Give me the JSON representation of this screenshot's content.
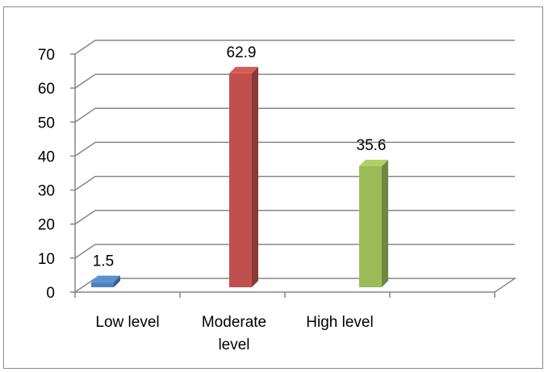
{
  "chart_data": {
    "type": "bar",
    "categories": [
      [
        "Low level"
      ],
      [
        "Moderate",
        "level"
      ],
      [
        "High level"
      ]
    ],
    "values": [
      1.5,
      62.9,
      35.6
    ],
    "data_labels": [
      "1.5",
      "62.9",
      "35.6"
    ],
    "colors": [
      "#4f81bd",
      "#c0504d",
      "#9bbb59"
    ],
    "ylim": [
      0,
      70
    ],
    "yticks": [
      "0",
      "10",
      "20",
      "30",
      "40",
      "50",
      "60",
      "70"
    ],
    "style": "3d-clustered-column",
    "grid": true,
    "legend": "none"
  }
}
